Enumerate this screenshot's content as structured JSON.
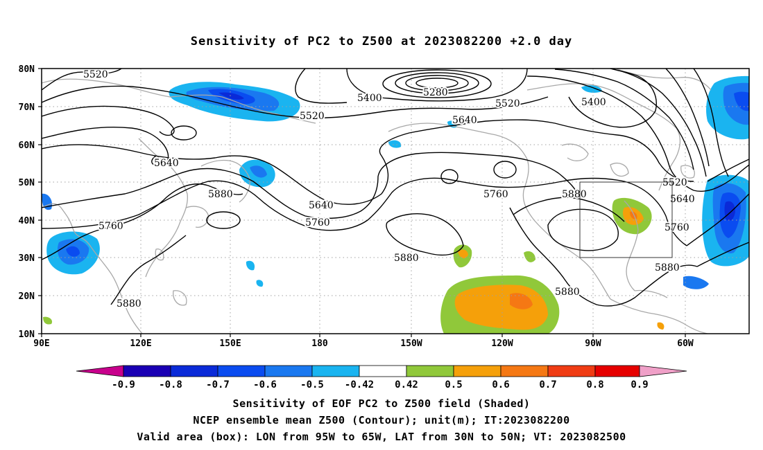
{
  "title": "Sensitivity of PC2 to Z500 at 2023082200 +2.0 day",
  "captions": [
    "Sensitivity of EOF PC2 to Z500 field (Shaded)",
    "NCEP ensemble mean Z500 (Contour); unit(m); IT:2023082200",
    "Valid area (box): LON from 95W to 65W, LAT from 30N to 50N; VT: 2023082500"
  ],
  "axes": {
    "lat_labels": [
      "80N",
      "70N",
      "60N",
      "50N",
      "40N",
      "30N",
      "20N",
      "10N"
    ],
    "lon_labels": [
      "90E",
      "120E",
      "150E",
      "180",
      "150W",
      "120W",
      "90W",
      "60W"
    ]
  },
  "colorbar": {
    "ticks": [
      "-0.9",
      "-0.8",
      "-0.7",
      "-0.6",
      "-0.5",
      "-0.42",
      "0.42",
      "0.5",
      "0.6",
      "0.7",
      "0.8",
      "0.9"
    ],
    "colors": [
      "#c8008c",
      "#1a00b4",
      "#0a2ad8",
      "#0a4cf0",
      "#1a78f0",
      "#1ab4f0",
      "#ffffff",
      "#90c83a",
      "#f5a00a",
      "#f57814",
      "#f03c14",
      "#e60000",
      "#f0a0c8"
    ]
  },
  "contour_labels": [
    "5520",
    "5280",
    "5400",
    "5520",
    "5640",
    "5400",
    "5520",
    "5640",
    "5760",
    "5880",
    "5640",
    "5760",
    "5760",
    "5880",
    "5880",
    "5880",
    "5880",
    "5760",
    "5520",
    "5640",
    "5880"
  ],
  "valid_box": {
    "lon_range": [
      "95W",
      "65W"
    ],
    "lat_range": [
      "30N",
      "50N"
    ]
  }
}
